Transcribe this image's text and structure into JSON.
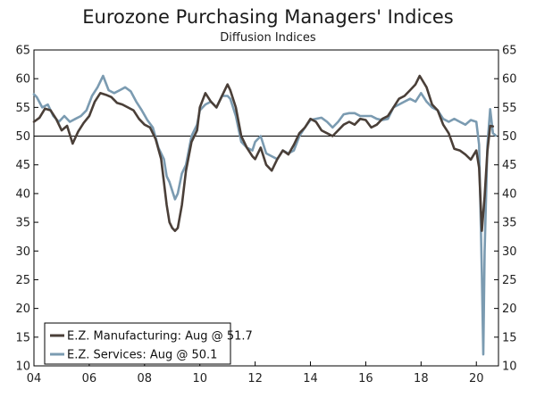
{
  "chart_data": {
    "type": "line",
    "title": "Eurozone Purchasing Managers' Indices",
    "subtitle": "Diffusion Indices",
    "xlabel": "",
    "ylabel": "",
    "xlim": [
      2004,
      2020.8
    ],
    "ylim": [
      10,
      65
    ],
    "x_ticks": [
      2004,
      2006,
      2008,
      2010,
      2012,
      2014,
      2016,
      2018,
      2020
    ],
    "x_tick_labels": [
      "04",
      "06",
      "08",
      "10",
      "12",
      "14",
      "16",
      "18",
      "20"
    ],
    "y_ticks": [
      10,
      15,
      20,
      25,
      30,
      35,
      40,
      45,
      50,
      55,
      60,
      65
    ],
    "y_tick_labels": [
      "10",
      "15",
      "20",
      "25",
      "30",
      "35",
      "40",
      "45",
      "50",
      "55",
      "60",
      "65"
    ],
    "reference_line": 50,
    "legend_position": "bottom-left",
    "series": [
      {
        "name": "E.Z. Manufacturing: Aug @ 51.7",
        "color": "#4a3f38",
        "x": [
          2004.0,
          2004.2,
          2004.4,
          2004.6,
          2004.8,
          2005.0,
          2005.2,
          2005.4,
          2005.6,
          2005.8,
          2006.0,
          2006.2,
          2006.4,
          2006.6,
          2006.8,
          2007.0,
          2007.2,
          2007.4,
          2007.6,
          2007.8,
          2008.0,
          2008.2,
          2008.4,
          2008.6,
          2008.8,
          2008.9,
          2009.0,
          2009.1,
          2009.2,
          2009.35,
          2009.5,
          2009.7,
          2009.9,
          2010.0,
          2010.2,
          2010.4,
          2010.6,
          2010.8,
          2011.0,
          2011.1,
          2011.3,
          2011.5,
          2011.7,
          2011.9,
          2012.0,
          2012.2,
          2012.4,
          2012.6,
          2012.8,
          2013.0,
          2013.2,
          2013.4,
          2013.6,
          2013.8,
          2014.0,
          2014.2,
          2014.4,
          2014.6,
          2014.8,
          2015.0,
          2015.2,
          2015.4,
          2015.6,
          2015.8,
          2016.0,
          2016.2,
          2016.4,
          2016.6,
          2016.8,
          2017.0,
          2017.2,
          2017.4,
          2017.6,
          2017.8,
          2017.95,
          2018.2,
          2018.4,
          2018.6,
          2018.8,
          2019.0,
          2019.2,
          2019.4,
          2019.6,
          2019.8,
          2020.0,
          2020.1,
          2020.2,
          2020.3,
          2020.4,
          2020.5,
          2020.6
        ],
        "values": [
          52.5,
          53.2,
          54.8,
          54.5,
          53.0,
          51.0,
          51.8,
          48.7,
          50.8,
          52.3,
          53.5,
          56.0,
          57.5,
          57.2,
          56.8,
          55.8,
          55.5,
          55.0,
          54.5,
          53.0,
          52.0,
          51.5,
          49.5,
          46.0,
          38.0,
          35.0,
          34.0,
          33.5,
          34.0,
          38.0,
          44.0,
          49.0,
          51.0,
          55.0,
          57.5,
          56.0,
          55.0,
          57.0,
          59.0,
          58.0,
          55.0,
          50.0,
          48.0,
          46.5,
          46.0,
          48.0,
          45.0,
          44.0,
          46.0,
          47.5,
          46.8,
          48.5,
          50.5,
          51.5,
          53.0,
          52.5,
          51.0,
          50.5,
          50.0,
          51.0,
          52.0,
          52.5,
          52.0,
          53.0,
          52.8,
          51.5,
          52.0,
          53.0,
          53.5,
          55.0,
          56.5,
          57.0,
          58.0,
          59.0,
          60.5,
          58.5,
          55.5,
          54.5,
          52.0,
          50.5,
          47.8,
          47.5,
          46.8,
          45.9,
          47.5,
          44.5,
          33.5,
          39.5,
          47.4,
          51.8,
          51.7
        ]
      },
      {
        "name": "E.Z. Services: Aug @ 50.1",
        "color": "#7b9bb1",
        "x": [
          2004.0,
          2004.1,
          2004.3,
          2004.5,
          2004.7,
          2004.9,
          2005.1,
          2005.3,
          2005.5,
          2005.7,
          2005.9,
          2006.1,
          2006.3,
          2006.5,
          2006.7,
          2006.9,
          2007.1,
          2007.3,
          2007.5,
          2007.7,
          2007.9,
          2008.1,
          2008.3,
          2008.5,
          2008.7,
          2008.8,
          2008.9,
          2009.0,
          2009.1,
          2009.2,
          2009.35,
          2009.5,
          2009.7,
          2009.9,
          2010.0,
          2010.2,
          2010.4,
          2010.6,
          2010.8,
          2011.0,
          2011.1,
          2011.3,
          2011.5,
          2011.7,
          2011.9,
          2012.0,
          2012.2,
          2012.4,
          2012.6,
          2012.8,
          2013.0,
          2013.2,
          2013.4,
          2013.6,
          2013.8,
          2014.0,
          2014.2,
          2014.4,
          2014.6,
          2014.8,
          2015.0,
          2015.2,
          2015.4,
          2015.6,
          2015.8,
          2016.0,
          2016.2,
          2016.4,
          2016.6,
          2016.8,
          2017.0,
          2017.2,
          2017.4,
          2017.6,
          2017.8,
          2018.0,
          2018.2,
          2018.4,
          2018.6,
          2018.8,
          2019.0,
          2019.2,
          2019.4,
          2019.6,
          2019.8,
          2020.0,
          2020.1,
          2020.2,
          2020.25,
          2020.3,
          2020.4,
          2020.5,
          2020.6,
          2020.7
        ],
        "values": [
          57.3,
          56.8,
          55.0,
          55.5,
          53.5,
          52.5,
          53.5,
          52.5,
          53.0,
          53.5,
          54.5,
          57.0,
          58.5,
          60.5,
          58.0,
          57.5,
          58.0,
          58.5,
          57.8,
          56.0,
          54.5,
          52.8,
          51.5,
          48.0,
          46.0,
          43.0,
          42.0,
          40.5,
          39.0,
          40.0,
          43.5,
          45.0,
          50.0,
          52.0,
          54.5,
          55.5,
          56.0,
          55.0,
          57.0,
          57.0,
          56.5,
          53.5,
          49.0,
          48.0,
          47.5,
          49.0,
          50.0,
          47.0,
          46.5,
          46.0,
          47.5,
          47.0,
          47.5,
          50.0,
          51.5,
          52.8,
          53.0,
          53.2,
          52.5,
          51.5,
          52.5,
          53.8,
          54.0,
          54.0,
          53.5,
          53.5,
          53.5,
          53.0,
          52.8,
          53.0,
          55.0,
          55.5,
          56.0,
          56.5,
          56.0,
          57.5,
          56.0,
          55.0,
          54.5,
          53.0,
          52.5,
          53.0,
          52.5,
          52.0,
          52.8,
          52.5,
          48.5,
          26.0,
          12.0,
          30.0,
          48.3,
          54.7,
          50.5,
          50.1
        ]
      }
    ]
  }
}
